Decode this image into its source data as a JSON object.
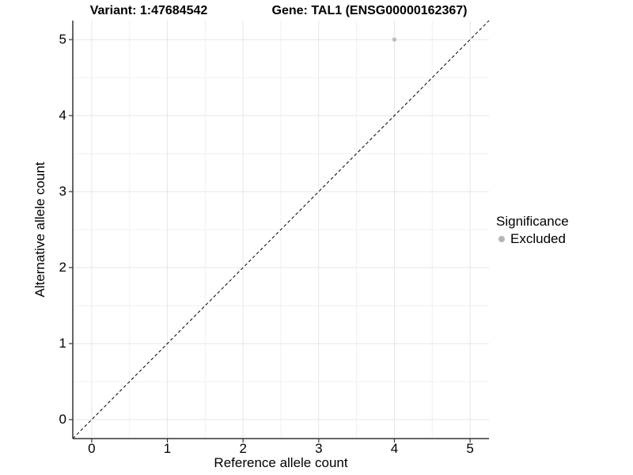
{
  "chart_data": {
    "type": "scatter",
    "title_left": "Variant: 1:47684542",
    "title_right": "Gene: TAL1 (ENSG00000162367)",
    "xlabel": "Reference allele count",
    "ylabel": "Alternative allele count",
    "xlim": [
      -0.25,
      5.25
    ],
    "ylim": [
      -0.25,
      5.25
    ],
    "xticks": [
      0,
      1,
      2,
      3,
      4,
      5
    ],
    "yticks": [
      0,
      1,
      2,
      3,
      4,
      5
    ],
    "minor_step": 0.5,
    "grid": true,
    "identity_line": {
      "style": "dashed",
      "color": "#000000",
      "from": -0.25,
      "to": 5.25
    },
    "series": [
      {
        "name": "Excluded",
        "color": "#bdbdbd",
        "points": [
          {
            "x": 4,
            "y": 5
          }
        ]
      }
    ],
    "legend": {
      "position": "right",
      "title": "Significance",
      "items": [
        {
          "label": "Excluded",
          "color": "#b5b5b5"
        }
      ]
    },
    "colors": {
      "background": "#ffffff",
      "grid_major": "#e6e6e6",
      "grid_minor": "#f0f0f0",
      "axis_line": "#333333",
      "tick_mark": "#333333",
      "text": "#000000"
    }
  }
}
